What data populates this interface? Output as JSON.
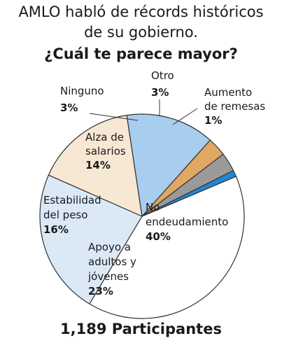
{
  "header": {
    "title_line1": "AMLO habló de récords históricos",
    "title_line2": "de su gobierno.",
    "subtitle": "¿Cuál te parece mayor?"
  },
  "footer": {
    "participants": "1,189 Participantes"
  },
  "chart_data": {
    "type": "pie",
    "title": "AMLO habló de récords históricos de su gobierno.",
    "subtitle": "¿Cuál te parece mayor?",
    "slices": [
      {
        "label": "No endeudamiento",
        "label_lines": [
          "No",
          "endeudamiento"
        ],
        "value": 40,
        "value_label": "40%",
        "color": "#ffffff"
      },
      {
        "label": "Apoyo a adultos y jóvenes",
        "label_lines": [
          "Apoyo a",
          "adultos y",
          "jóvenes"
        ],
        "value": 23,
        "value_label": "23%",
        "color": "#dbe9f6"
      },
      {
        "label": "Estabilidad del peso",
        "label_lines": [
          "Estabilidad",
          "del peso"
        ],
        "value": 16,
        "value_label": "16%",
        "color": "#f7e8d4"
      },
      {
        "label": "Alza de salarios",
        "label_lines": [
          "Alza de",
          "salarios"
        ],
        "value": 14,
        "value_label": "14%",
        "color": "#a9cdee"
      },
      {
        "label": "Ninguno",
        "label_lines": [
          "Ninguno"
        ],
        "value": 3,
        "value_label": "3%",
        "color": "#e0a862"
      },
      {
        "label": "Otro",
        "label_lines": [
          "Otro"
        ],
        "value": 3,
        "value_label": "3%",
        "color": "#9a9a9a"
      },
      {
        "label": "Aumento de remesas",
        "label_lines": [
          "Aumento",
          "de remesas"
        ],
        "value": 1,
        "value_label": "1%",
        "color": "#1e88d6"
      }
    ],
    "total_label": "1,189 Participantes"
  }
}
